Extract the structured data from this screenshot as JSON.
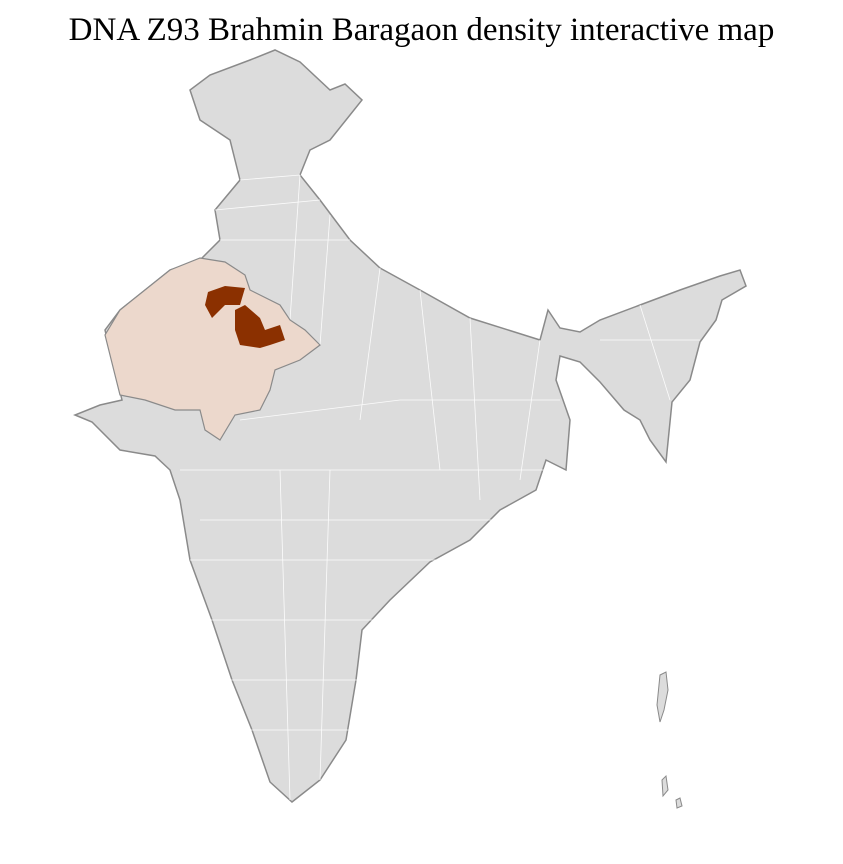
{
  "title": "DNA Z93 Brahmin Baragaon density interactive map",
  "map": {
    "base_fill": "#dcdcdc",
    "border_color": "#8a8a8a",
    "district_line_color": "#ffffff",
    "regions": [
      {
        "name": "Rajasthan",
        "level": "low",
        "fill": "#ecd8cc"
      },
      {
        "name": "high-density-district-north",
        "level": "high",
        "fill": "#8b3000"
      },
      {
        "name": "high-density-district-central",
        "level": "high",
        "fill": "#8b3000"
      }
    ]
  }
}
